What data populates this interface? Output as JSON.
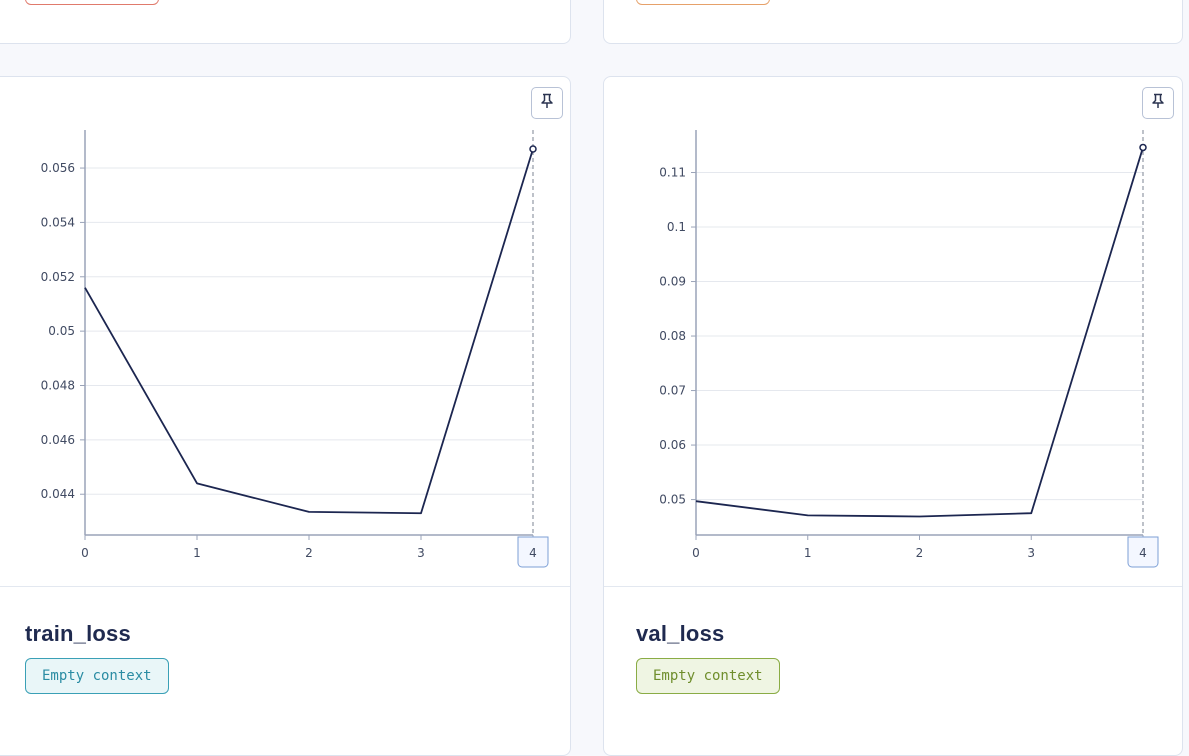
{
  "colors": {
    "line": "#1c2650",
    "axis": "#9aa3b8",
    "grid": "#e5e8ee",
    "badge_red_border": "#e07a6c",
    "badge_orange_border": "#e6a16a"
  },
  "icons": {
    "pin": "pin-icon"
  },
  "panels": [
    {
      "title": "train_loss",
      "context_label": "Empty context",
      "badge_style": "teal",
      "badge_colors": {
        "bg": "#e9f6f8",
        "border": "#3aa0b6",
        "text": "#2a8ca3"
      },
      "hover_x_label": "4"
    },
    {
      "title": "val_loss",
      "context_label": "Empty context",
      "badge_style": "green",
      "badge_colors": {
        "bg": "#eff5e3",
        "border": "#8aac45",
        "text": "#6f8e2c"
      },
      "hover_x_label": "4"
    }
  ],
  "chart_data": [
    {
      "type": "line",
      "x": [
        0,
        1,
        2,
        3,
        4
      ],
      "series": [
        {
          "values": [
            0.0516,
            0.0444,
            0.04335,
            0.0433,
            0.0567
          ]
        }
      ],
      "x_ticks": [
        "0",
        "1",
        "2",
        "3",
        "4"
      ],
      "y_ticks": [
        0.044,
        0.046,
        0.048,
        0.05,
        0.052,
        0.054,
        0.056
      ],
      "y_tick_labels": [
        "0.044",
        "0.046",
        "0.048",
        "0.05",
        "0.052",
        "0.054",
        "0.056"
      ],
      "ylim": [
        0.0425,
        0.0574
      ],
      "xlim": [
        0,
        4
      ],
      "grid": true,
      "hover_index": 4
    },
    {
      "type": "line",
      "x": [
        0,
        1,
        2,
        3,
        4
      ],
      "series": [
        {
          "values": [
            0.0497,
            0.0471,
            0.0469,
            0.0475,
            0.1146
          ]
        }
      ],
      "x_ticks": [
        "0",
        "1",
        "2",
        "3",
        "4"
      ],
      "y_ticks": [
        0.05,
        0.06,
        0.07,
        0.08,
        0.09,
        0.1,
        0.11
      ],
      "y_tick_labels": [
        "0.05",
        "0.06",
        "0.07",
        "0.08",
        "0.09",
        "0.1",
        "0.11"
      ],
      "ylim": [
        0.0435,
        0.1178
      ],
      "xlim": [
        0,
        4
      ],
      "grid": true,
      "hover_index": 4
    }
  ]
}
